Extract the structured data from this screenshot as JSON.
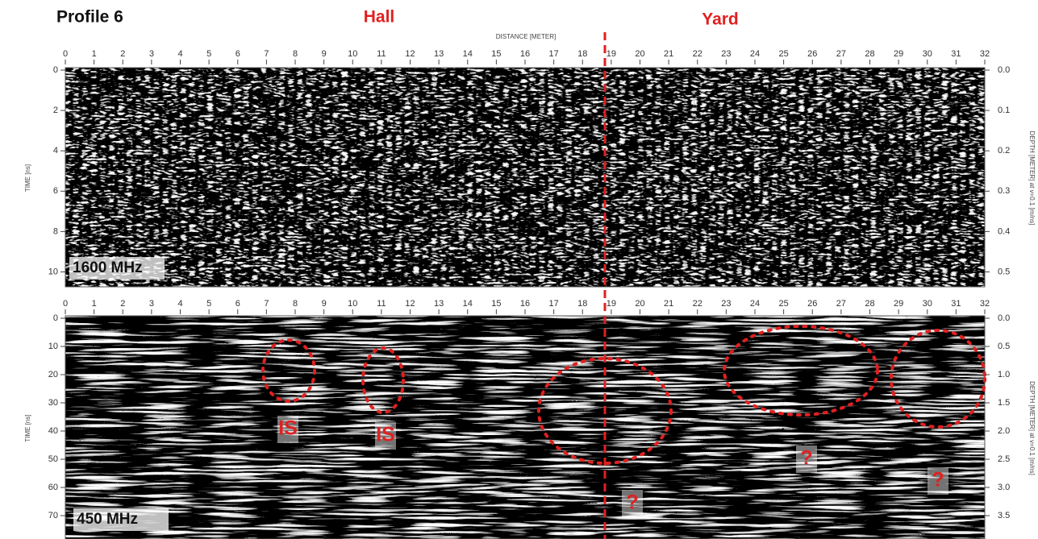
{
  "header": {
    "title": "Profile 6",
    "left_label": "Hall",
    "right_label": "Yard",
    "x_axis_label": "DISTANCE [METER]"
  },
  "panels": [
    {
      "frequency": "1600 MHz",
      "y_axis_label": "TIME [ns]",
      "y2_axis_label": "DEPTH [METER] at v=0.1 [m/ns]",
      "xlim": [
        0,
        32
      ],
      "xticks": [
        0,
        1,
        2,
        3,
        4,
        5,
        6,
        7,
        8,
        9,
        10,
        11,
        12,
        13,
        14,
        15,
        16,
        17,
        18,
        19,
        20,
        21,
        22,
        23,
        24,
        25,
        26,
        27,
        28,
        29,
        30,
        31,
        32
      ],
      "ylim": [
        0,
        10.7
      ],
      "yticks": [
        0,
        2,
        4,
        6,
        8,
        10
      ],
      "y2lim": [
        0,
        0.535
      ],
      "y2ticks": [
        {
          "value": 0,
          "label": "0.0"
        },
        0.1,
        0.2,
        0.3,
        0.4,
        0.5
      ],
      "annotations": []
    },
    {
      "frequency": "450 MHz",
      "y_axis_label": "TIME [ns]",
      "y2_axis_label": "DEPTH [METER] at v=0.1 [m/ns]",
      "xlim": [
        0,
        32
      ],
      "xticks": [
        0,
        1,
        2,
        3,
        4,
        5,
        6,
        7,
        8,
        9,
        10,
        11,
        12,
        13,
        14,
        15,
        16,
        17,
        18,
        19,
        20,
        21,
        22,
        23,
        24,
        25,
        26,
        27,
        28,
        29,
        30,
        31,
        32
      ],
      "ylim": [
        0,
        78
      ],
      "yticks": [
        0,
        10,
        20,
        30,
        40,
        50,
        60,
        70
      ],
      "y2lim": [
        0,
        3.9
      ],
      "y2ticks": [
        {
          "value": 0,
          "label": "0.0"
        },
        0.5,
        {
          "value": 1,
          "label": "1.0"
        },
        1.5,
        {
          "value": 2,
          "label": "2.0"
        },
        2.5,
        {
          "value": 3,
          "label": "3.0"
        },
        3.5
      ],
      "annotations": [
        "IS",
        "IS",
        "?",
        "?",
        "?"
      ]
    }
  ]
}
